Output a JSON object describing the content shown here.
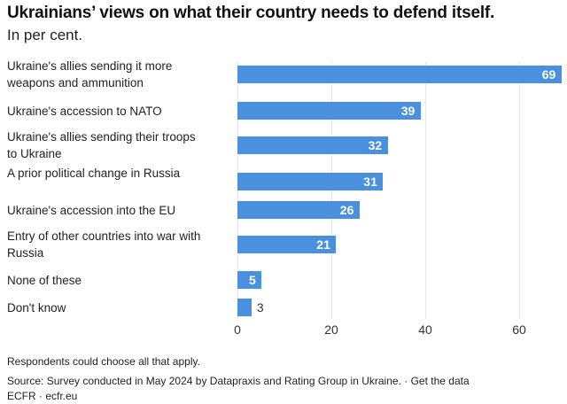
{
  "chart_data": {
    "type": "bar",
    "orientation": "horizontal",
    "title": "Ukrainians’ views on what their country needs to defend itself.",
    "subtitle": "In per cent.",
    "categories": [
      "Ukraine's allies sending it more weapons and ammunition",
      "Ukraine's accession to NATO",
      "Ukraine's allies sending their troops to Ukraine",
      "A prior political change in Russia",
      "Ukraine's accession into the EU",
      "Entry of other countries into war with Russia",
      "None of these",
      "Don't know"
    ],
    "values": [
      69,
      39,
      32,
      31,
      26,
      21,
      5,
      3
    ],
    "xlim": [
      0,
      69
    ],
    "xticks": [
      "0",
      "20",
      "40",
      "60"
    ],
    "xtick_values": [
      0,
      20,
      40,
      60
    ],
    "grid": true,
    "bar_color": "#4a90dc"
  },
  "footer": {
    "note": "Respondents could choose all that apply.",
    "source": "Source: Survey conducted in May 2024 by Datapraxis and Rating Group in Ukraine. · Get the data",
    "credit": "ECFR · ecfr.eu"
  }
}
